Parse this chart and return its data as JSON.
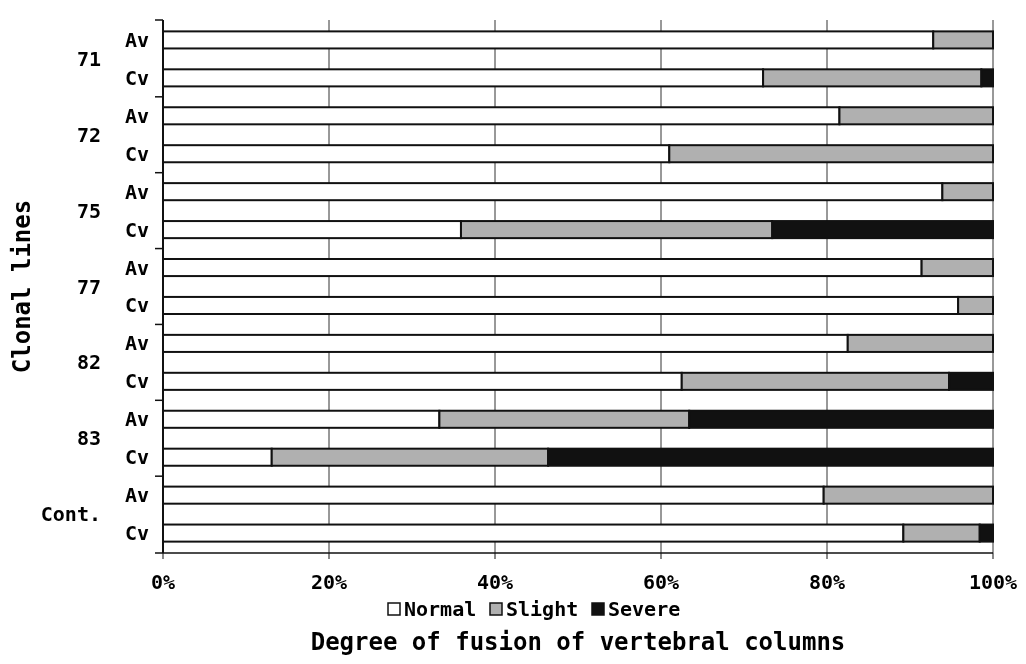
{
  "chart_data": {
    "type": "bar",
    "orientation": "horizontal",
    "stacked": true,
    "categories": [
      "Av",
      "Cv",
      "Av",
      "Cv",
      "Av",
      "Cv",
      "Av",
      "Cv",
      "Av",
      "Cv",
      "Av",
      "Cv",
      "Av",
      "Cv"
    ],
    "annotations": [
      "71",
      "72",
      "75",
      "77",
      "82",
      "83",
      "Cont."
    ],
    "series": [
      {
        "name": "Normal",
        "color": "#ffffff",
        "values": [
          92.8,
          72.3,
          81.5,
          61,
          93.9,
          35.9,
          91.4,
          95.8,
          82.5,
          62.5,
          33.3,
          13.1,
          79.6,
          89.2
        ]
      },
      {
        "name": "Slight",
        "color": "#b0b0b0",
        "values": [
          7.2,
          26.3,
          18.5,
          39,
          6.1,
          37.5,
          8.6,
          4.2,
          17.5,
          32.2,
          30.1,
          33.3,
          20.4,
          9.2
        ]
      },
      {
        "name": "Severe",
        "color": "#111111",
        "values": [
          0,
          1.4,
          0,
          0,
          0,
          26.6,
          0,
          0,
          0,
          5.3,
          36.6,
          53.6,
          0,
          1.6
        ]
      }
    ],
    "xlim": [
      0,
      100
    ],
    "xticks": [
      {
        "value": 0,
        "label": "0%"
      },
      {
        "value": 20,
        "label": "20%"
      },
      {
        "value": 40,
        "label": "40%"
      },
      {
        "value": 60,
        "label": "60%"
      },
      {
        "value": 80,
        "label": "80%"
      },
      {
        "value": 100,
        "label": "100%"
      }
    ],
    "xlabel": "Degree of fusion of vertebral columns",
    "ylabel": "Clonal lines",
    "grid": "x",
    "legend": "bottom"
  }
}
